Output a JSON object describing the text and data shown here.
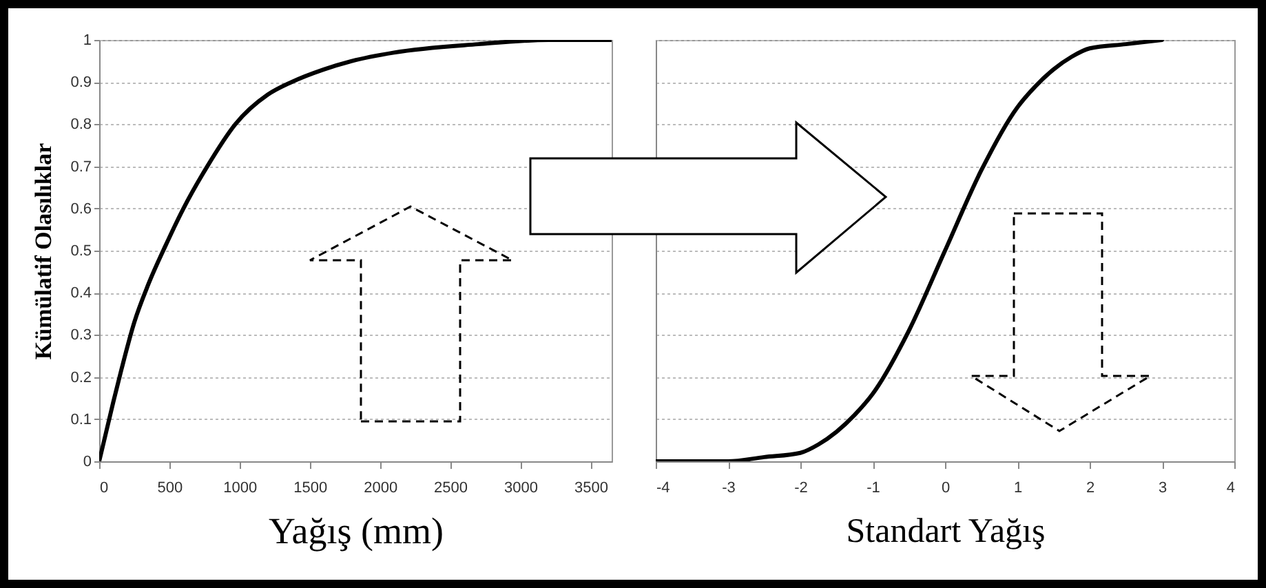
{
  "chart_data": [
    {
      "type": "line",
      "xlabel": "Yağış (mm)",
      "ylabel": "Kümülatif Olasılıklar",
      "x": [
        0,
        50,
        100,
        160,
        250,
        350,
        470,
        600,
        770,
        970,
        1200,
        1370,
        1600,
        1800,
        2100,
        2700,
        3200,
        3650
      ],
      "series": [
        {
          "color": "#000000",
          "values": [
            0,
            0.07,
            0.14,
            0.22,
            0.33,
            0.42,
            0.51,
            0.6,
            0.7,
            0.8,
            0.87,
            0.9,
            0.93,
            0.95,
            0.97,
            0.99,
            1,
            1
          ]
        }
      ],
      "xlim": [
        0,
        3650
      ],
      "xticks": [
        0,
        500,
        1000,
        1500,
        2000,
        2500,
        3000,
        3500
      ],
      "ylim": [
        0,
        1
      ],
      "yticks": [
        0,
        0.1,
        0.2,
        0.3,
        0.4,
        0.5,
        0.6,
        0.7,
        0.8,
        0.9,
        1
      ],
      "grid": "y"
    },
    {
      "type": "line",
      "xlabel": "Standart Yağış",
      "x": [
        -4,
        -3,
        -2.5,
        -2,
        -1.75,
        -1.5,
        -1.25,
        -1,
        -0.5,
        0,
        0.5,
        1,
        1.25,
        1.5,
        1.75,
        2,
        2.5,
        3
      ],
      "series": [
        {
          "color": "#000000",
          "values": [
            0,
            0,
            0.01,
            0.02,
            0.04,
            0.07,
            0.11,
            0.16,
            0.31,
            0.5,
            0.69,
            0.84,
            0.89,
            0.93,
            0.96,
            0.98,
            0.99,
            1
          ]
        }
      ],
      "xlim": [
        -4,
        4
      ],
      "xticks": [
        -4,
        -3,
        -2,
        -1,
        0,
        1,
        2,
        3,
        4
      ],
      "ylim": [
        0,
        1
      ],
      "yticks": [
        0,
        0.1,
        0.2,
        0.3,
        0.4,
        0.5,
        0.6,
        0.7,
        0.8,
        0.9,
        1
      ],
      "grid": "y",
      "tick_labels": "x"
    }
  ]
}
